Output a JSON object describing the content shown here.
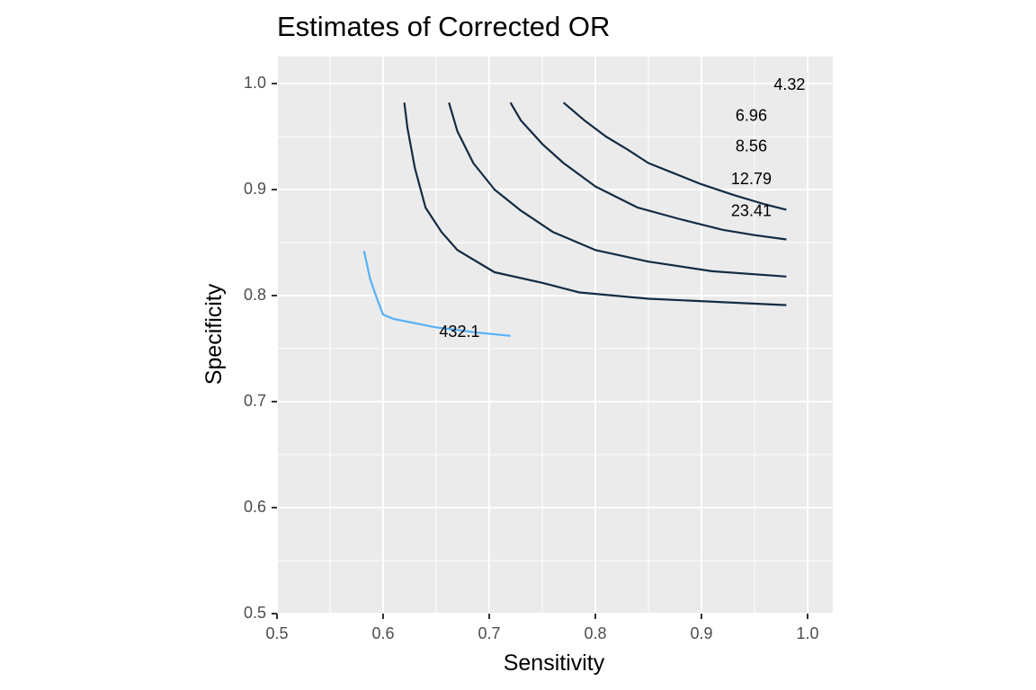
{
  "chart_data": {
    "type": "line",
    "title": "Estimates of Corrected OR",
    "xlabel": "Sensitivity",
    "ylabel": "Specificity",
    "xlim": [
      0.5,
      1.0
    ],
    "ylim": [
      0.5,
      1.0
    ],
    "x_ticks": [
      0.5,
      0.6,
      0.7,
      0.8,
      0.9,
      1.0
    ],
    "x_tick_labels": [
      "0.5",
      "0.6",
      "0.7",
      "0.8",
      "0.9",
      "1.0"
    ],
    "y_ticks": [
      0.5,
      0.6,
      0.7,
      0.8,
      0.9,
      1.0
    ],
    "y_tick_labels": [
      "0.5",
      "0.6",
      "0.7",
      "0.8",
      "0.9",
      "1.0"
    ],
    "grid": true,
    "legend": "none",
    "colors": {
      "panel_background": "#EBEBEB",
      "grid_line": "#FFFFFF",
      "contour_dark": "#132B43",
      "contour_light": "#56B1F7"
    },
    "series": [
      {
        "label": "4.32",
        "color": "#132B43",
        "label_at": [
          0.983,
          0.998
        ],
        "points": [
          [
            0.77,
            0.982
          ],
          [
            0.79,
            0.965
          ],
          [
            0.81,
            0.95
          ],
          [
            0.83,
            0.938
          ],
          [
            0.85,
            0.925
          ],
          [
            0.875,
            0.915
          ],
          [
            0.9,
            0.905
          ],
          [
            0.93,
            0.895
          ],
          [
            0.96,
            0.886
          ],
          [
            0.98,
            0.881
          ]
        ]
      },
      {
        "label": "6.96",
        "color": "#132B43",
        "label_at": [
          0.947,
          0.969
        ],
        "points": [
          [
            0.72,
            0.982
          ],
          [
            0.73,
            0.965
          ],
          [
            0.75,
            0.943
          ],
          [
            0.77,
            0.925
          ],
          [
            0.8,
            0.903
          ],
          [
            0.84,
            0.883
          ],
          [
            0.88,
            0.872
          ],
          [
            0.92,
            0.862
          ],
          [
            0.95,
            0.857
          ],
          [
            0.98,
            0.853
          ]
        ]
      },
      {
        "label": "8.56",
        "color": "#132B43",
        "label_at": [
          0.947,
          0.94
        ],
        "points": [
          [
            0.662,
            0.982
          ],
          [
            0.67,
            0.955
          ],
          [
            0.685,
            0.925
          ],
          [
            0.705,
            0.9
          ],
          [
            0.73,
            0.88
          ],
          [
            0.76,
            0.86
          ],
          [
            0.8,
            0.843
          ],
          [
            0.85,
            0.832
          ],
          [
            0.91,
            0.823
          ],
          [
            0.98,
            0.818
          ]
        ]
      },
      {
        "label": "12.79",
        "color": "#132B43",
        "label_at": [
          0.947,
          0.909
        ],
        "points": [
          [
            0.62,
            0.982
          ],
          [
            0.623,
            0.958
          ],
          [
            0.63,
            0.92
          ],
          [
            0.64,
            0.883
          ],
          [
            0.655,
            0.86
          ],
          [
            0.67,
            0.843
          ],
          [
            0.705,
            0.822
          ],
          [
            0.75,
            0.812
          ],
          [
            0.785,
            0.803
          ],
          [
            0.85,
            0.797
          ],
          [
            0.98,
            0.791
          ]
        ]
      },
      {
        "label": "23.41",
        "color": "#132B43",
        "label_at": [
          0.947,
          0.879
        ],
        "points": []
      },
      {
        "label": "432.1",
        "color": "#56B1F7",
        "label_at": [
          0.672,
          0.765
        ],
        "points": [
          [
            0.582,
            0.842
          ],
          [
            0.588,
            0.815
          ],
          [
            0.595,
            0.795
          ],
          [
            0.6,
            0.782
          ],
          [
            0.61,
            0.778
          ],
          [
            0.65,
            0.77
          ],
          [
            0.69,
            0.765
          ],
          [
            0.72,
            0.762
          ]
        ]
      }
    ]
  }
}
